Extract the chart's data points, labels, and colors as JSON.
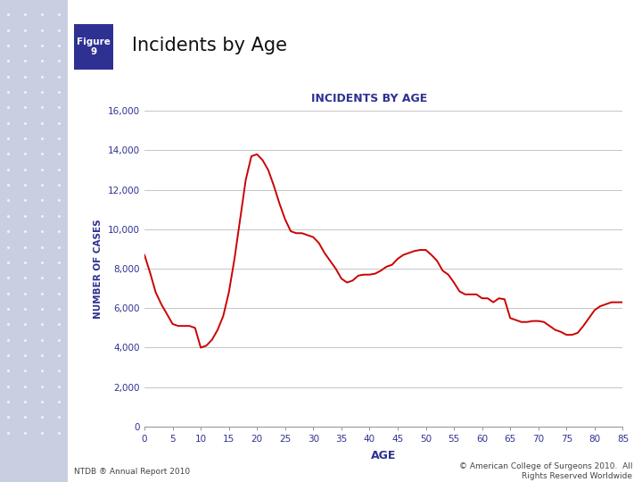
{
  "title": "Incidents by Age",
  "chart_title": "INCIDENTS BY AGE",
  "xlabel": "AGE",
  "ylabel": "NUMBER OF CASES",
  "figure_label": "Figure\n9",
  "footer_left": "NTDB ® Annual Report 2010",
  "footer_right": "© American College of Surgeons 2010.  All\nRights Reserved Worldwide",
  "ylim": [
    0,
    16000
  ],
  "yticks": [
    0,
    2000,
    4000,
    6000,
    8000,
    10000,
    12000,
    14000,
    16000
  ],
  "xticks": [
    0,
    5,
    10,
    15,
    20,
    25,
    30,
    35,
    40,
    45,
    50,
    55,
    60,
    65,
    70,
    75,
    80,
    85
  ],
  "xlim": [
    0,
    85
  ],
  "line_color": "#cc0000",
  "bg_color": "#ffffff",
  "left_panel_color": "#c8cfe0",
  "header_box_color": "#2e3192",
  "chart_title_color": "#2e3192",
  "axis_label_color": "#2e3192",
  "tick_label_color": "#2e3192",
  "grid_color": "#bbbbbb",
  "ages": [
    0,
    1,
    2,
    3,
    4,
    5,
    6,
    7,
    8,
    9,
    10,
    11,
    12,
    13,
    14,
    15,
    16,
    17,
    18,
    19,
    20,
    21,
    22,
    23,
    24,
    25,
    26,
    27,
    28,
    29,
    30,
    31,
    32,
    33,
    34,
    35,
    36,
    37,
    38,
    39,
    40,
    41,
    42,
    43,
    44,
    45,
    46,
    47,
    48,
    49,
    50,
    51,
    52,
    53,
    54,
    55,
    56,
    57,
    58,
    59,
    60,
    61,
    62,
    63,
    64,
    65,
    66,
    67,
    68,
    69,
    70,
    71,
    72,
    73,
    74,
    75,
    76,
    77,
    78,
    79,
    80,
    81,
    82,
    83,
    84,
    85
  ],
  "values": [
    8700,
    7800,
    6800,
    6200,
    5700,
    5200,
    5100,
    5100,
    5100,
    5000,
    4000,
    4100,
    4400,
    4900,
    5600,
    6800,
    8500,
    10500,
    12500,
    13700,
    13800,
    13500,
    13000,
    12200,
    11300,
    10500,
    9900,
    9800,
    9800,
    9700,
    9600,
    9300,
    8800,
    8400,
    8000,
    7500,
    7300,
    7400,
    7650,
    7700,
    7700,
    7750,
    7900,
    8100,
    8200,
    8500,
    8700,
    8800,
    8900,
    8950,
    8950,
    8700,
    8400,
    7900,
    7700,
    7300,
    6850,
    6700,
    6700,
    6700,
    6500,
    6500,
    6300,
    6500,
    6450,
    5500,
    5400,
    5300,
    5300,
    5350,
    5350,
    5300,
    5100,
    4900,
    4800,
    4650,
    4650,
    4750,
    5100,
    5500,
    5900,
    6100,
    6200,
    6300,
    6300,
    6300
  ]
}
